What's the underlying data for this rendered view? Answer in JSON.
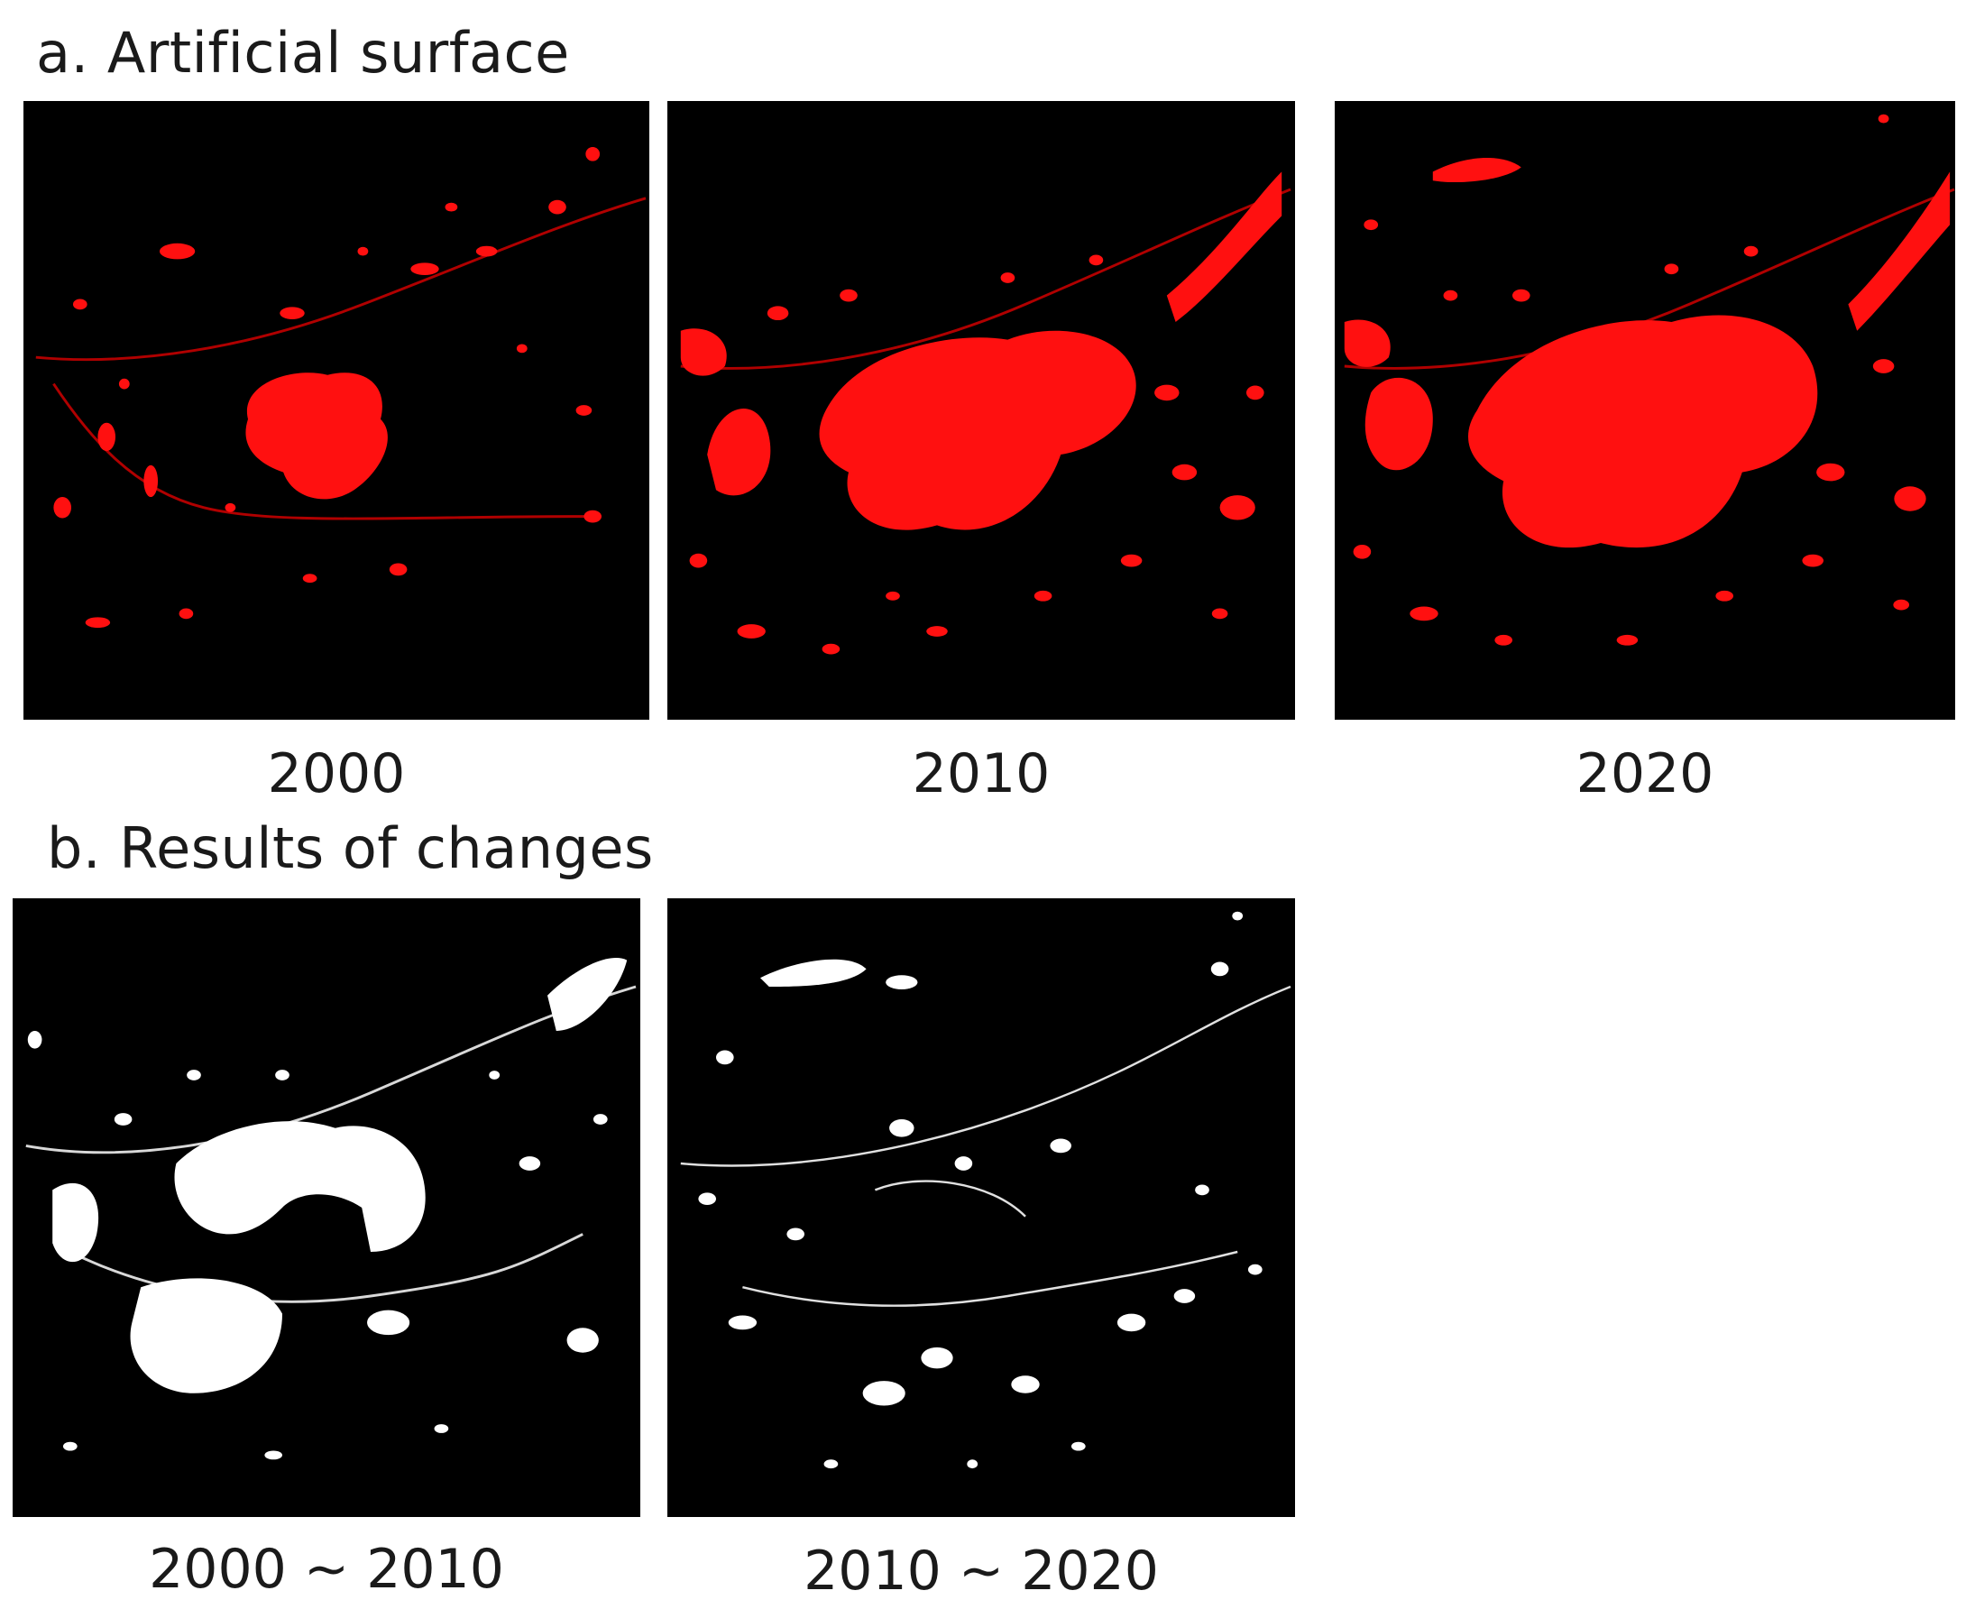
{
  "section_a": {
    "title": "a. Artificial surface",
    "panels": [
      {
        "label": "2000",
        "fill_color": "#ff1010",
        "extent": "small"
      },
      {
        "label": "2010",
        "fill_color": "#ff1010",
        "extent": "medium"
      },
      {
        "label": "2020",
        "fill_color": "#ff1010",
        "extent": "large"
      }
    ]
  },
  "section_b": {
    "title": "b. Results of changes",
    "panels": [
      {
        "label": "2000 ~ 2010",
        "fill_color": "#ffffff"
      },
      {
        "label": "2010 ~ 2020",
        "fill_color": "#ffffff"
      }
    ]
  },
  "colors": {
    "background": "#000000",
    "artificial_surface": "#ff1010",
    "change": "#ffffff"
  }
}
